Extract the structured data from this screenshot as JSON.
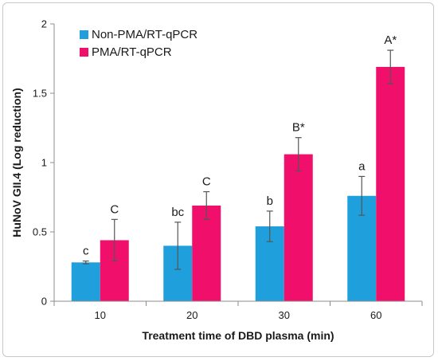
{
  "chart_data": {
    "type": "bar",
    "categories": [
      "10",
      "20",
      "30",
      "60"
    ],
    "series": [
      {
        "name": "Non-PMA/RT-qPCR",
        "color": "#1f9fdc",
        "values": [
          0.28,
          0.4,
          0.54,
          0.76
        ],
        "errors": [
          0.01,
          0.17,
          0.11,
          0.14
        ],
        "labels": [
          "c",
          "bc",
          "b",
          "a"
        ]
      },
      {
        "name": "PMA/RT-qPCR",
        "color": "#f0106c",
        "values": [
          0.44,
          0.69,
          1.06,
          1.69
        ],
        "errors": [
          0.15,
          0.1,
          0.12,
          0.12
        ],
        "labels": [
          "C",
          "C",
          "B*",
          "A*"
        ]
      }
    ],
    "xlabel": "Treatment time of DBD plasma (min)",
    "ylabel": "HuNoV GII.4 (Log reduction)",
    "ylim": [
      0,
      2
    ],
    "yticks": [
      "0",
      "0.5",
      "1",
      "1.5",
      "2"
    ],
    "grid": false,
    "legend_position": "top-left"
  }
}
